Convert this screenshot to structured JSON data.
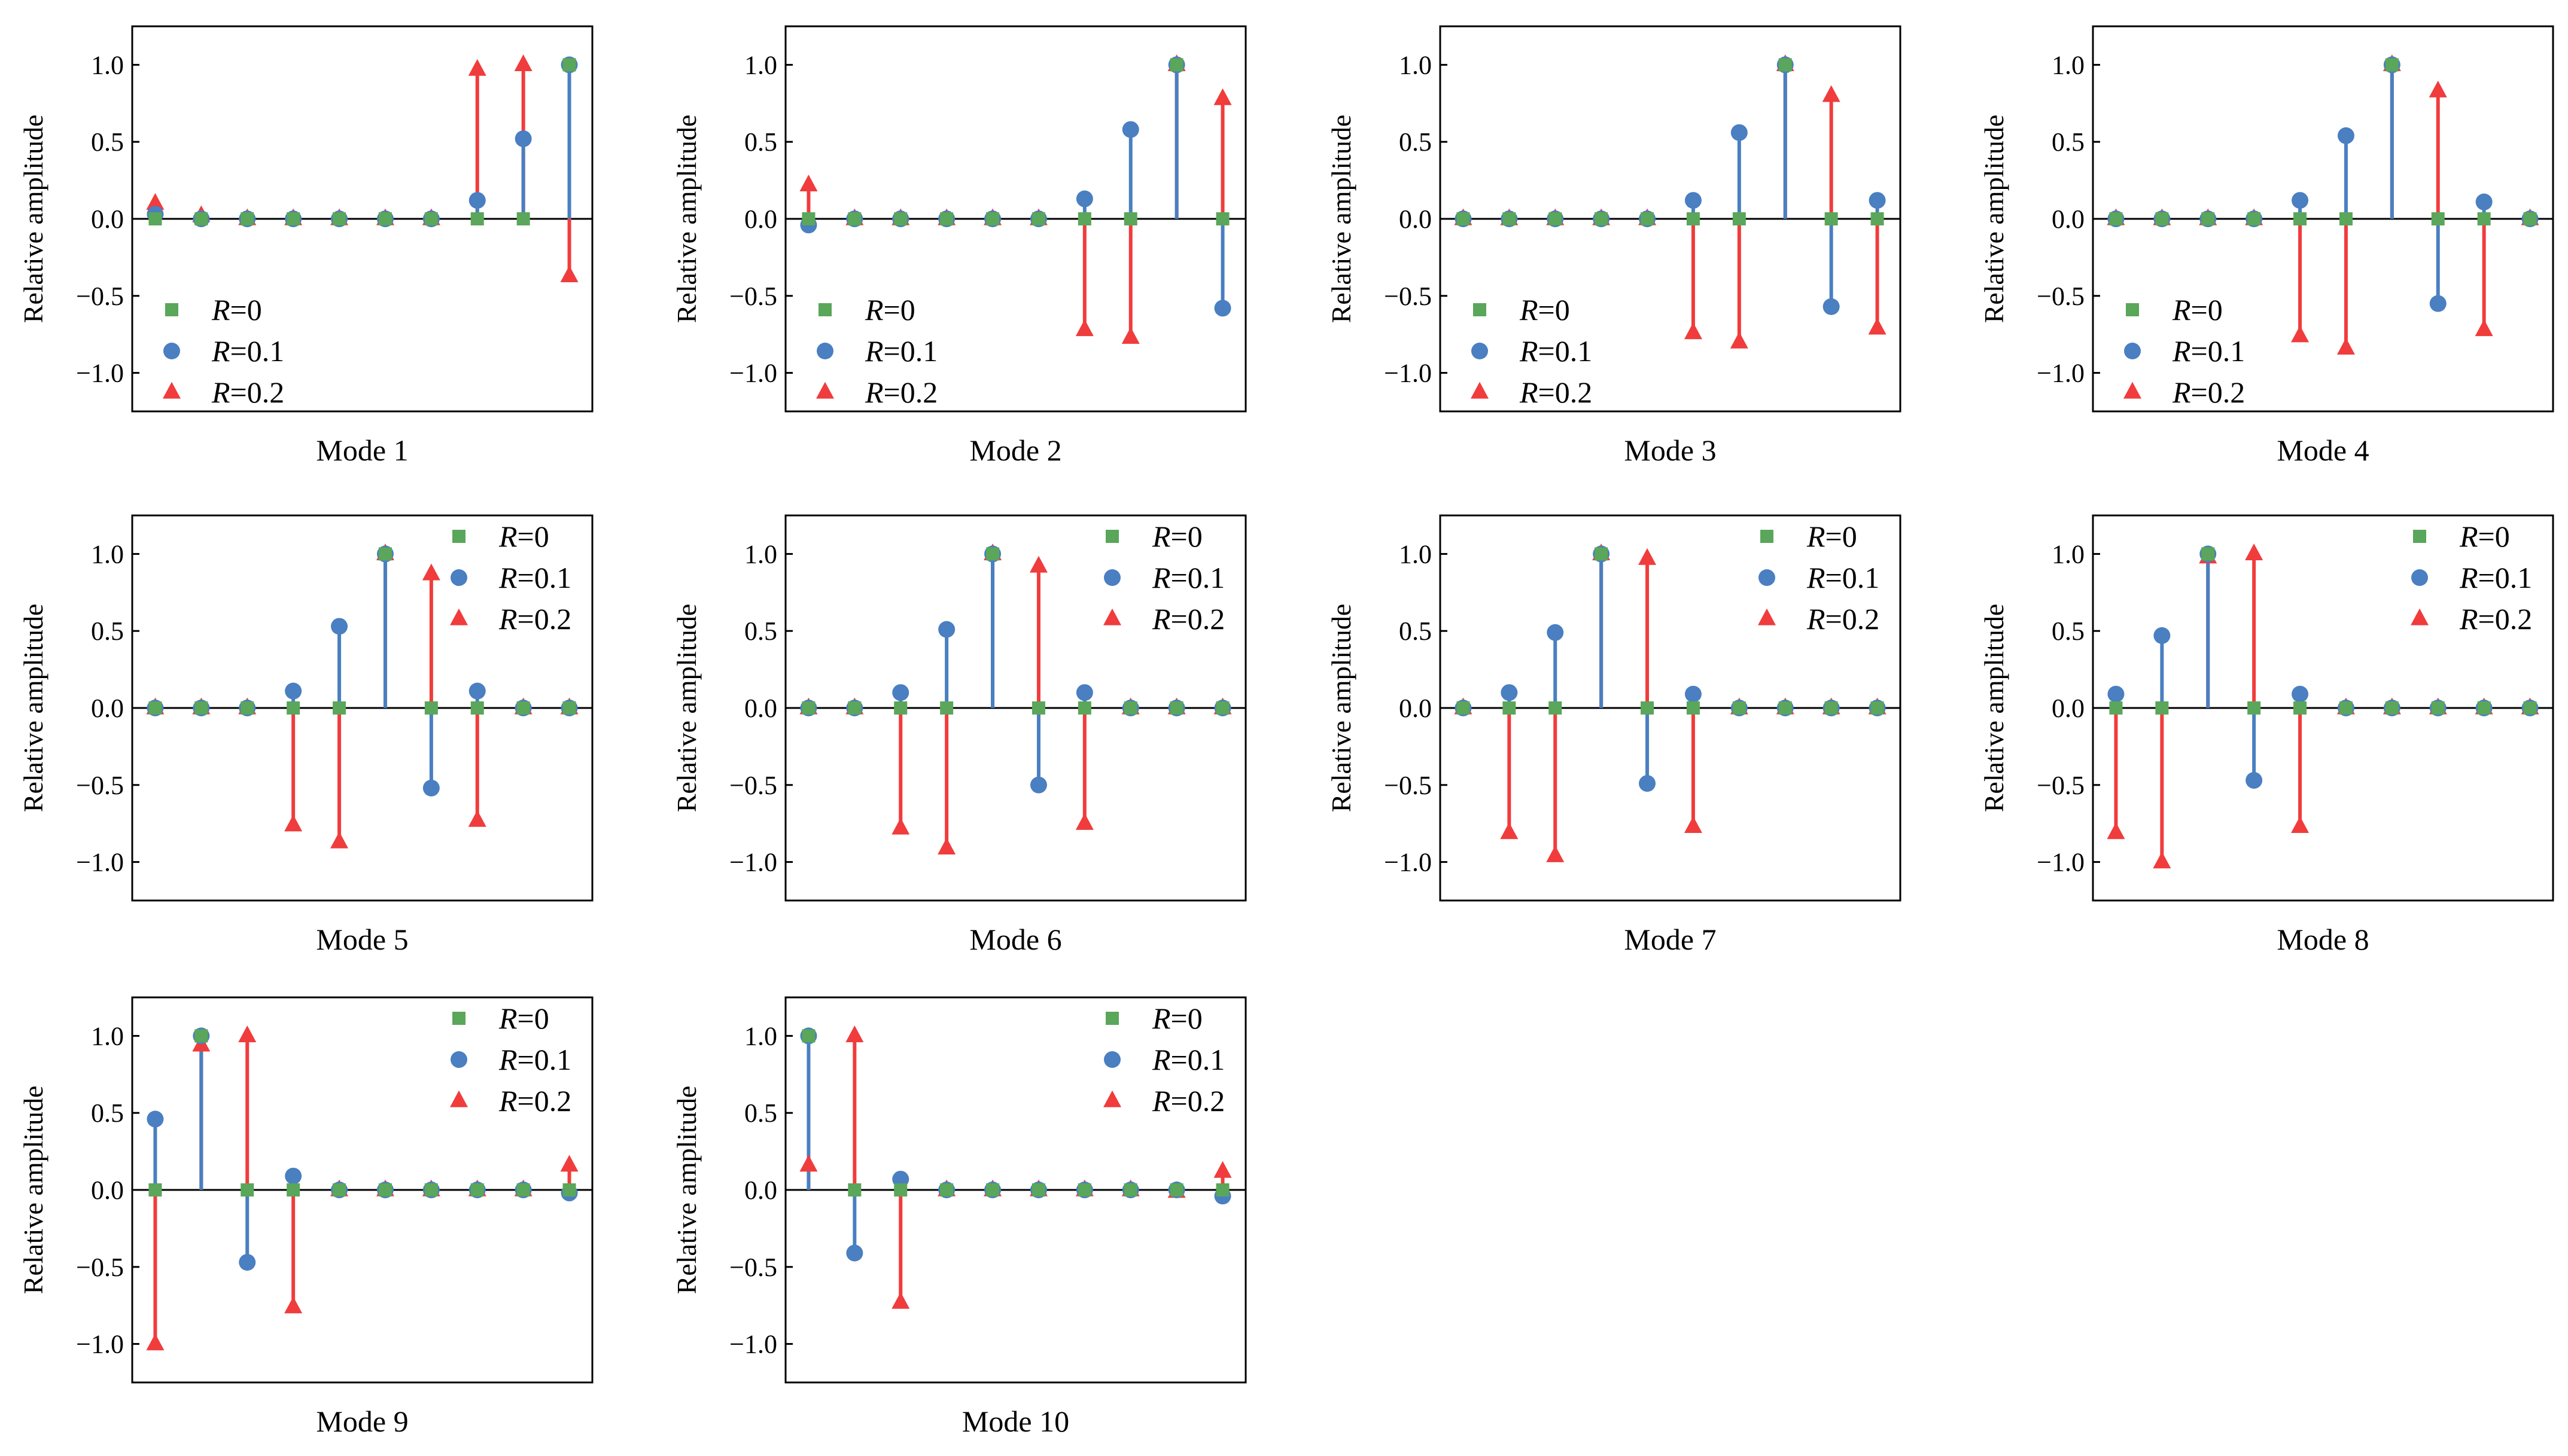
{
  "figure": {
    "ylabel": "Relative amplitude",
    "yticks": [
      -1.0,
      -0.5,
      0.0,
      0.5,
      1.0
    ],
    "ytick_labels": [
      "−1.0",
      "−0.5",
      "0.0",
      "0.5",
      "1.0"
    ],
    "legend_entries": [
      {
        "var": "R",
        "text": "=0"
      },
      {
        "var": "R",
        "text": "=0.1"
      },
      {
        "var": "R",
        "text": "=0.2"
      }
    ],
    "colors": {
      "R0": "#5aa65a",
      "R01": "#4a7fc1",
      "R02": "#f03c3c"
    },
    "markers": {
      "R0": "square",
      "R01": "circle",
      "R02": "triangle"
    }
  },
  "chart_data": [
    {
      "type": "stem",
      "title": "Mode 1",
      "legend_position": "bottom-left",
      "x": [
        1,
        2,
        3,
        4,
        5,
        6,
        7,
        8,
        9,
        10
      ],
      "xlim": [
        0.5,
        10.5
      ],
      "ylim": [
        -1.25,
        1.25
      ],
      "series": [
        {
          "name": "R=0",
          "values": [
            0,
            0,
            0,
            0,
            0,
            0,
            0,
            0,
            0,
            1.0
          ]
        },
        {
          "name": "R=0.1",
          "values": [
            0.03,
            0,
            0,
            0,
            0,
            0,
            0,
            0.12,
            0.52,
            1.0
          ]
        },
        {
          "name": "R=0.2",
          "values": [
            0.1,
            0.02,
            0,
            0,
            0,
            0,
            0,
            0.97,
            1.0,
            -0.37
          ]
        }
      ]
    },
    {
      "type": "stem",
      "title": "Mode 2",
      "legend_position": "bottom-left",
      "x": [
        1,
        2,
        3,
        4,
        5,
        6,
        7,
        8,
        9,
        10
      ],
      "xlim": [
        0.5,
        10.5
      ],
      "ylim": [
        -1.25,
        1.25
      ],
      "series": [
        {
          "name": "R=0",
          "values": [
            0,
            0,
            0,
            0,
            0,
            0,
            0,
            0,
            1.0,
            0
          ]
        },
        {
          "name": "R=0.1",
          "values": [
            -0.04,
            0,
            0,
            0,
            0,
            0,
            0.13,
            0.58,
            1.0,
            -0.58
          ]
        },
        {
          "name": "R=0.2",
          "values": [
            0.22,
            0,
            0,
            0,
            0,
            0,
            -0.72,
            -0.77,
            1.0,
            0.78
          ]
        }
      ]
    },
    {
      "type": "stem",
      "title": "Mode 3",
      "legend_position": "bottom-left",
      "x": [
        1,
        2,
        3,
        4,
        5,
        6,
        7,
        8,
        9,
        10
      ],
      "xlim": [
        0.5,
        10.5
      ],
      "ylim": [
        -1.25,
        1.25
      ],
      "series": [
        {
          "name": "R=0",
          "values": [
            0,
            0,
            0,
            0,
            0,
            0,
            0,
            1.0,
            0,
            0
          ]
        },
        {
          "name": "R=0.1",
          "values": [
            0,
            0,
            0,
            0,
            0,
            0.12,
            0.56,
            1.0,
            -0.57,
            0.12
          ]
        },
        {
          "name": "R=0.2",
          "values": [
            0,
            0,
            0,
            0,
            0,
            -0.74,
            -0.8,
            1.0,
            0.8,
            -0.71
          ]
        }
      ]
    },
    {
      "type": "stem",
      "title": "Mode 4",
      "legend_position": "bottom-left",
      "x": [
        1,
        2,
        3,
        4,
        5,
        6,
        7,
        8,
        9,
        10
      ],
      "xlim": [
        0.5,
        10.5
      ],
      "ylim": [
        -1.25,
        1.25
      ],
      "series": [
        {
          "name": "R=0",
          "values": [
            0,
            0,
            0,
            0,
            0,
            0,
            1.0,
            0,
            0,
            0
          ]
        },
        {
          "name": "R=0.1",
          "values": [
            0,
            0,
            0,
            0,
            0.12,
            0.54,
            1.0,
            -0.55,
            0.11,
            0
          ]
        },
        {
          "name": "R=0.2",
          "values": [
            0,
            0,
            0,
            0,
            -0.76,
            -0.84,
            1.0,
            0.83,
            -0.72,
            0
          ]
        }
      ]
    },
    {
      "type": "stem",
      "title": "Mode 5",
      "legend_position": "top-right",
      "x": [
        1,
        2,
        3,
        4,
        5,
        6,
        7,
        8,
        9,
        10
      ],
      "xlim": [
        0.5,
        10.5
      ],
      "ylim": [
        -1.25,
        1.25
      ],
      "series": [
        {
          "name": "R=0",
          "values": [
            0,
            0,
            0,
            0,
            0,
            1.0,
            0,
            0,
            0,
            0
          ]
        },
        {
          "name": "R=0.1",
          "values": [
            0,
            0,
            0,
            0.11,
            0.53,
            1.0,
            -0.52,
            0.11,
            0,
            0
          ]
        },
        {
          "name": "R=0.2",
          "values": [
            0,
            0,
            0,
            -0.76,
            -0.87,
            1.0,
            0.87,
            -0.73,
            0,
            0
          ]
        }
      ]
    },
    {
      "type": "stem",
      "title": "Mode 6",
      "legend_position": "top-right",
      "x": [
        1,
        2,
        3,
        4,
        5,
        6,
        7,
        8,
        9,
        10
      ],
      "xlim": [
        0.5,
        10.5
      ],
      "ylim": [
        -1.25,
        1.25
      ],
      "series": [
        {
          "name": "R=0",
          "values": [
            0,
            0,
            0,
            0,
            1.0,
            0,
            0,
            0,
            0,
            0
          ]
        },
        {
          "name": "R=0.1",
          "values": [
            0,
            0,
            0.1,
            0.51,
            1.0,
            -0.5,
            0.1,
            0,
            0,
            0
          ]
        },
        {
          "name": "R=0.2",
          "values": [
            0,
            0,
            -0.78,
            -0.91,
            1.0,
            0.92,
            -0.75,
            0,
            0,
            0
          ]
        }
      ]
    },
    {
      "type": "stem",
      "title": "Mode 7",
      "legend_position": "top-right",
      "x": [
        1,
        2,
        3,
        4,
        5,
        6,
        7,
        8,
        9,
        10
      ],
      "xlim": [
        0.5,
        10.5
      ],
      "ylim": [
        -1.25,
        1.25
      ],
      "series": [
        {
          "name": "R=0",
          "values": [
            0,
            0,
            0,
            1.0,
            0,
            0,
            0,
            0,
            0,
            0
          ]
        },
        {
          "name": "R=0.1",
          "values": [
            0,
            0.1,
            0.49,
            1.0,
            -0.49,
            0.09,
            0,
            0,
            0,
            0
          ]
        },
        {
          "name": "R=0.2",
          "values": [
            0,
            -0.81,
            -0.96,
            1.0,
            0.97,
            -0.77,
            0,
            0,
            0,
            0
          ]
        }
      ]
    },
    {
      "type": "stem",
      "title": "Mode 8",
      "legend_position": "top-right",
      "x": [
        1,
        2,
        3,
        4,
        5,
        6,
        7,
        8,
        9,
        10
      ],
      "xlim": [
        0.5,
        10.5
      ],
      "ylim": [
        -1.25,
        1.25
      ],
      "series": [
        {
          "name": "R=0",
          "values": [
            0,
            0,
            1.0,
            0,
            0,
            0,
            0,
            0,
            0,
            0
          ]
        },
        {
          "name": "R=0.1",
          "values": [
            0.09,
            0.47,
            1.0,
            -0.47,
            0.09,
            0,
            0,
            0,
            0,
            0
          ]
        },
        {
          "name": "R=0.2",
          "values": [
            -0.81,
            -1.0,
            0.98,
            1.0,
            -0.77,
            0,
            0,
            0,
            0,
            0
          ]
        }
      ]
    },
    {
      "type": "stem",
      "title": "Mode 9",
      "legend_position": "top-right",
      "x": [
        1,
        2,
        3,
        4,
        5,
        6,
        7,
        8,
        9,
        10
      ],
      "xlim": [
        0.5,
        10.5
      ],
      "ylim": [
        -1.25,
        1.25
      ],
      "series": [
        {
          "name": "R=0",
          "values": [
            0,
            1.0,
            0,
            0,
            0,
            0,
            0,
            0,
            0,
            0
          ]
        },
        {
          "name": "R=0.1",
          "values": [
            0.46,
            1.0,
            -0.47,
            0.09,
            0,
            0,
            0,
            0,
            0,
            -0.02
          ]
        },
        {
          "name": "R=0.2",
          "values": [
            -1.0,
            0.94,
            1.0,
            -0.76,
            0,
            0,
            0,
            0,
            0,
            0.16
          ]
        }
      ]
    },
    {
      "type": "stem",
      "title": "Mode 10",
      "legend_position": "top-right",
      "x": [
        1,
        2,
        3,
        4,
        5,
        6,
        7,
        8,
        9,
        10
      ],
      "xlim": [
        0.5,
        10.5
      ],
      "ylim": [
        -1.25,
        1.25
      ],
      "series": [
        {
          "name": "R=0",
          "values": [
            1.0,
            0,
            0,
            0,
            0,
            0,
            0,
            0,
            0,
            0
          ]
        },
        {
          "name": "R=0.1",
          "values": [
            1.0,
            -0.41,
            0.07,
            0,
            0,
            0,
            0,
            0,
            0,
            -0.04
          ]
        },
        {
          "name": "R=0.2",
          "values": [
            0.16,
            1.0,
            -0.73,
            0,
            0,
            0,
            0,
            0,
            -0.01,
            0.12
          ]
        }
      ]
    }
  ]
}
